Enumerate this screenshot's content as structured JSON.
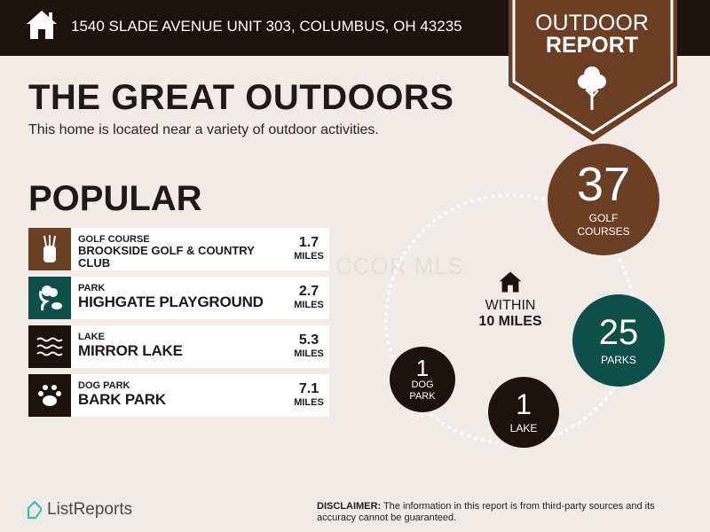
{
  "header": {
    "address": "1540 SLADE AVENUE UNIT 303, COLUMBUS, OH 43235",
    "home_icon": "home-icon"
  },
  "badge": {
    "line1": "OUTDOOR",
    "line2": "REPORT",
    "icon": "tree-icon",
    "color": "#6b3f23"
  },
  "title": "THE GREAT OUTDOORS",
  "subtitle": "This home is located near a variety of outdoor activities.",
  "popular": {
    "heading": "POPULAR",
    "items": [
      {
        "category": "GOLF COURSE",
        "name": "BROOKSIDE GOLF & COUNTRY CLUB",
        "distance": "1.7",
        "unit": "MILES",
        "icon": "golf-bag-icon",
        "color": "#6b3f23"
      },
      {
        "category": "PARK",
        "name": "HIGHGATE PLAYGROUND",
        "distance": "2.7",
        "unit": "MILES",
        "icon": "park-tree-icon",
        "color": "#0f4f4a"
      },
      {
        "category": "LAKE",
        "name": "MIRROR LAKE",
        "distance": "5.3",
        "unit": "MILES",
        "icon": "waves-icon",
        "color": "#1d120d"
      },
      {
        "category": "DOG PARK",
        "name": "BARK PARK",
        "distance": "7.1",
        "unit": "MILES",
        "icon": "paw-icon",
        "color": "#1d120d"
      }
    ]
  },
  "watermark": "CCOR MLS",
  "summary": {
    "within_line1": "WITHIN",
    "within_line2": "10 MILES",
    "golf": {
      "count": "37",
      "label1": "GOLF",
      "label2": "COURSES"
    },
    "parks": {
      "count": "25",
      "label": "PARKS"
    },
    "lake": {
      "count": "1",
      "label": "LAKE"
    },
    "dog": {
      "count": "1",
      "label1": "DOG",
      "label2": "PARK"
    }
  },
  "footer": {
    "logo": "ListReports",
    "disclaimer_label": "DISCLAIMER:",
    "disclaimer": " The information in this report is from third-party sources and its accuracy cannot be guaranteed."
  }
}
